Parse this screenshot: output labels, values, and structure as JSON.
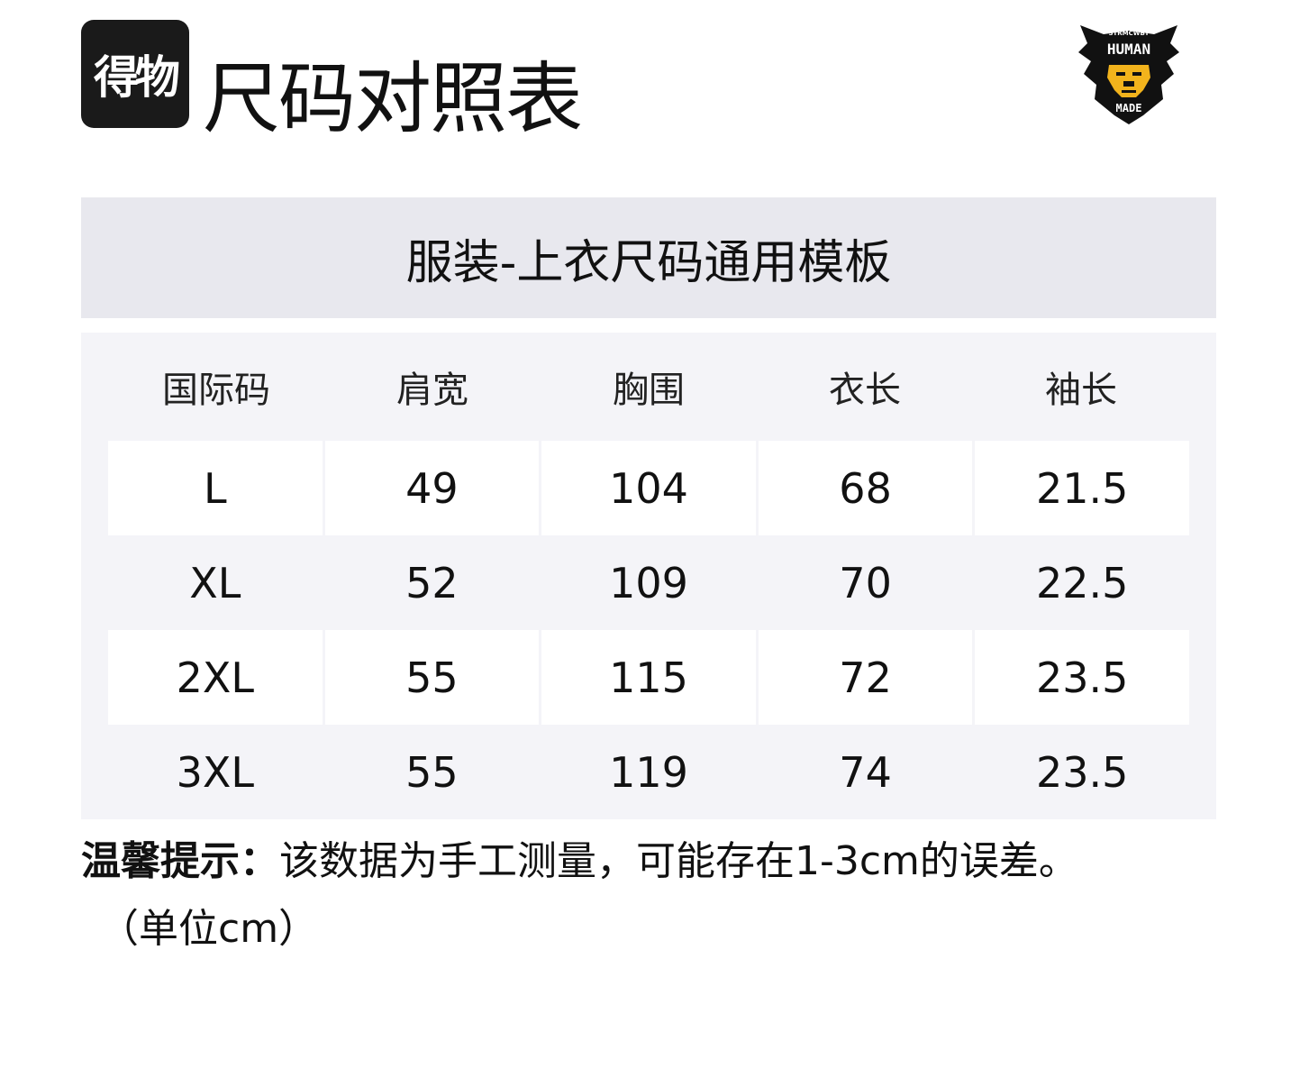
{
  "brand": {
    "logo_text": "得物"
  },
  "header": {
    "title": "尺码对照表",
    "brand_logo_text": [
      "STRMCWBY",
      "HUMAN",
      "MADE"
    ]
  },
  "band_title": "服装-上衣尺码通用模板",
  "table": {
    "columns": [
      "国际码",
      "肩宽",
      "胸围",
      "衣长",
      "袖长"
    ],
    "rows": [
      [
        "L",
        "49",
        "104",
        "68",
        "21.5"
      ],
      [
        "XL",
        "52",
        "109",
        "70",
        "22.5"
      ],
      [
        "2XL",
        "55",
        "115",
        "72",
        "23.5"
      ],
      [
        "3XL",
        "55",
        "119",
        "74",
        "23.5"
      ]
    ]
  },
  "note": {
    "label": "温馨提示：",
    "text": "该数据为手工测量，可能存在1-3cm的误差。",
    "unit": "（单位cm）"
  }
}
